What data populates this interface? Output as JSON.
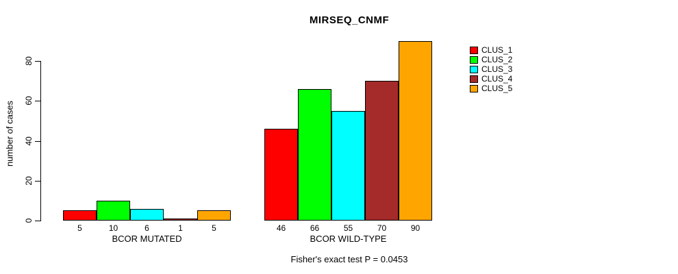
{
  "chart_data": {
    "type": "bar",
    "title": "MIRSEQ_CNMF",
    "ylabel": "number of cases",
    "ylim": [
      0,
      90
    ],
    "yticks": [
      0,
      20,
      40,
      60,
      80
    ],
    "grid": false,
    "legend_position": "right-outside",
    "bar_value_labels_shown": true,
    "categories": [
      "BCOR MUTATED",
      "BCOR WILD-TYPE"
    ],
    "series": [
      {
        "name": "CLUS_1",
        "color": "#FF0000",
        "values": [
          5,
          46
        ]
      },
      {
        "name": "CLUS_2",
        "color": "#00FF00",
        "values": [
          10,
          66
        ]
      },
      {
        "name": "CLUS_3",
        "color": "#00FFFF",
        "values": [
          6,
          55
        ]
      },
      {
        "name": "CLUS_4",
        "color": "#A52A2A",
        "values": [
          1,
          70
        ]
      },
      {
        "name": "CLUS_5",
        "color": "#FFA500",
        "values": [
          5,
          90
        ]
      }
    ],
    "annotation": "Fisher's exact test P = 0.0453"
  }
}
